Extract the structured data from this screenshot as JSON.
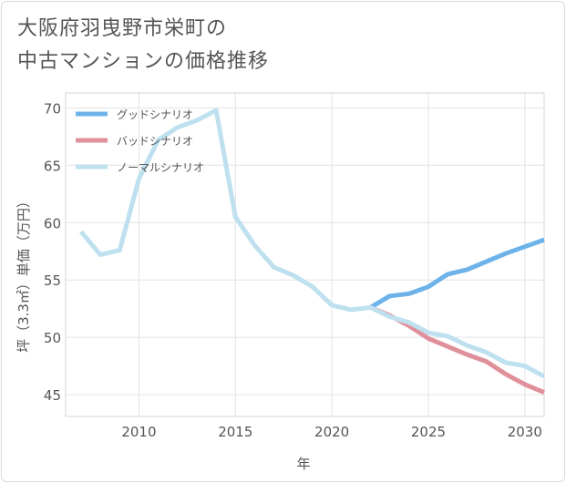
{
  "title": {
    "line1": "大阪府羽曳野市栄町の",
    "line2": "中古マンションの価格推移"
  },
  "chart_data": {
    "type": "line",
    "xlabel": "年",
    "ylabel": "坪（3.3㎡）単価（万円）",
    "xlim": [
      2006.2,
      2031
    ],
    "ylim": [
      43.1,
      71.3
    ],
    "xticks": [
      2010,
      2015,
      2020,
      2025,
      2030
    ],
    "yticks": [
      45,
      50,
      55,
      60,
      65,
      70
    ],
    "grid": true,
    "legend_position": "top-left",
    "series": [
      {
        "key": "good",
        "name": "グッドシナリオ",
        "color": "#6db3ea",
        "x": [
          2022,
          2023,
          2024,
          2025,
          2026,
          2027,
          2028,
          2029,
          2030,
          2031
        ],
        "y": [
          52.6,
          53.6,
          53.8,
          54.4,
          55.5,
          55.9,
          56.6,
          57.3,
          57.9,
          58.5
        ]
      },
      {
        "key": "bad",
        "name": "バッドシナリオ",
        "color": "#e0909a",
        "x": [
          2022,
          2023,
          2024,
          2025,
          2026,
          2027,
          2028,
          2029,
          2030,
          2031
        ],
        "y": [
          52.6,
          51.9,
          51.0,
          49.9,
          49.2,
          48.5,
          47.9,
          46.8,
          45.9,
          45.2
        ]
      },
      {
        "key": "normal",
        "name": "ノーマルシナリオ",
        "color": "#bee0ef",
        "x": [
          2007,
          2008,
          2009,
          2010,
          2011,
          2012,
          2013,
          2014,
          2015,
          2016,
          2017,
          2018,
          2019,
          2020,
          2021,
          2022,
          2023,
          2024,
          2025,
          2026,
          2027,
          2028,
          2029,
          2030,
          2031
        ],
        "y": [
          59.2,
          57.2,
          57.6,
          63.8,
          67.2,
          68.3,
          68.9,
          69.8,
          60.5,
          58.0,
          56.1,
          55.4,
          54.4,
          52.8,
          52.4,
          52.6,
          51.8,
          51.3,
          50.4,
          50.1,
          49.3,
          48.7,
          47.8,
          47.5,
          46.6
        ]
      }
    ]
  }
}
